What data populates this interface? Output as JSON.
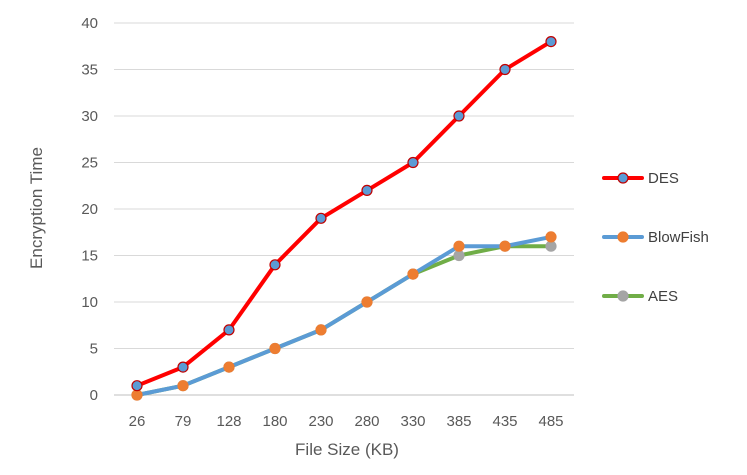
{
  "chart_data": {
    "type": "line",
    "xlabel": "File Size (KB)",
    "ylabel": "Encryption Time",
    "categories": [
      "26",
      "79",
      "128",
      "180",
      "230",
      "280",
      "330",
      "385",
      "435",
      "485"
    ],
    "ylim": [
      0,
      40
    ],
    "yticks": [
      0,
      5,
      10,
      15,
      20,
      25,
      30,
      35,
      40
    ],
    "grid": true,
    "legend_position": "right",
    "series": [
      {
        "name": "DES",
        "values": [
          1,
          3,
          7,
          14,
          19,
          22,
          25,
          30,
          35,
          38
        ],
        "line_color": "#FF0000",
        "marker_color": "#5B9BD5",
        "marker_edge": "#C00000"
      },
      {
        "name": "BlowFish",
        "values": [
          0,
          1,
          3,
          5,
          7,
          10,
          13,
          16,
          16,
          17
        ],
        "line_color": "#5B9BD5",
        "marker_color": "#ED7D31",
        "marker_edge": "#ED7D31"
      },
      {
        "name": "AES",
        "values": [
          0,
          1,
          3,
          5,
          7,
          10,
          13,
          15,
          16,
          16
        ],
        "line_color": "#70AD47",
        "marker_color": "#A5A5A5",
        "marker_edge": "#A5A5A5"
      }
    ]
  }
}
